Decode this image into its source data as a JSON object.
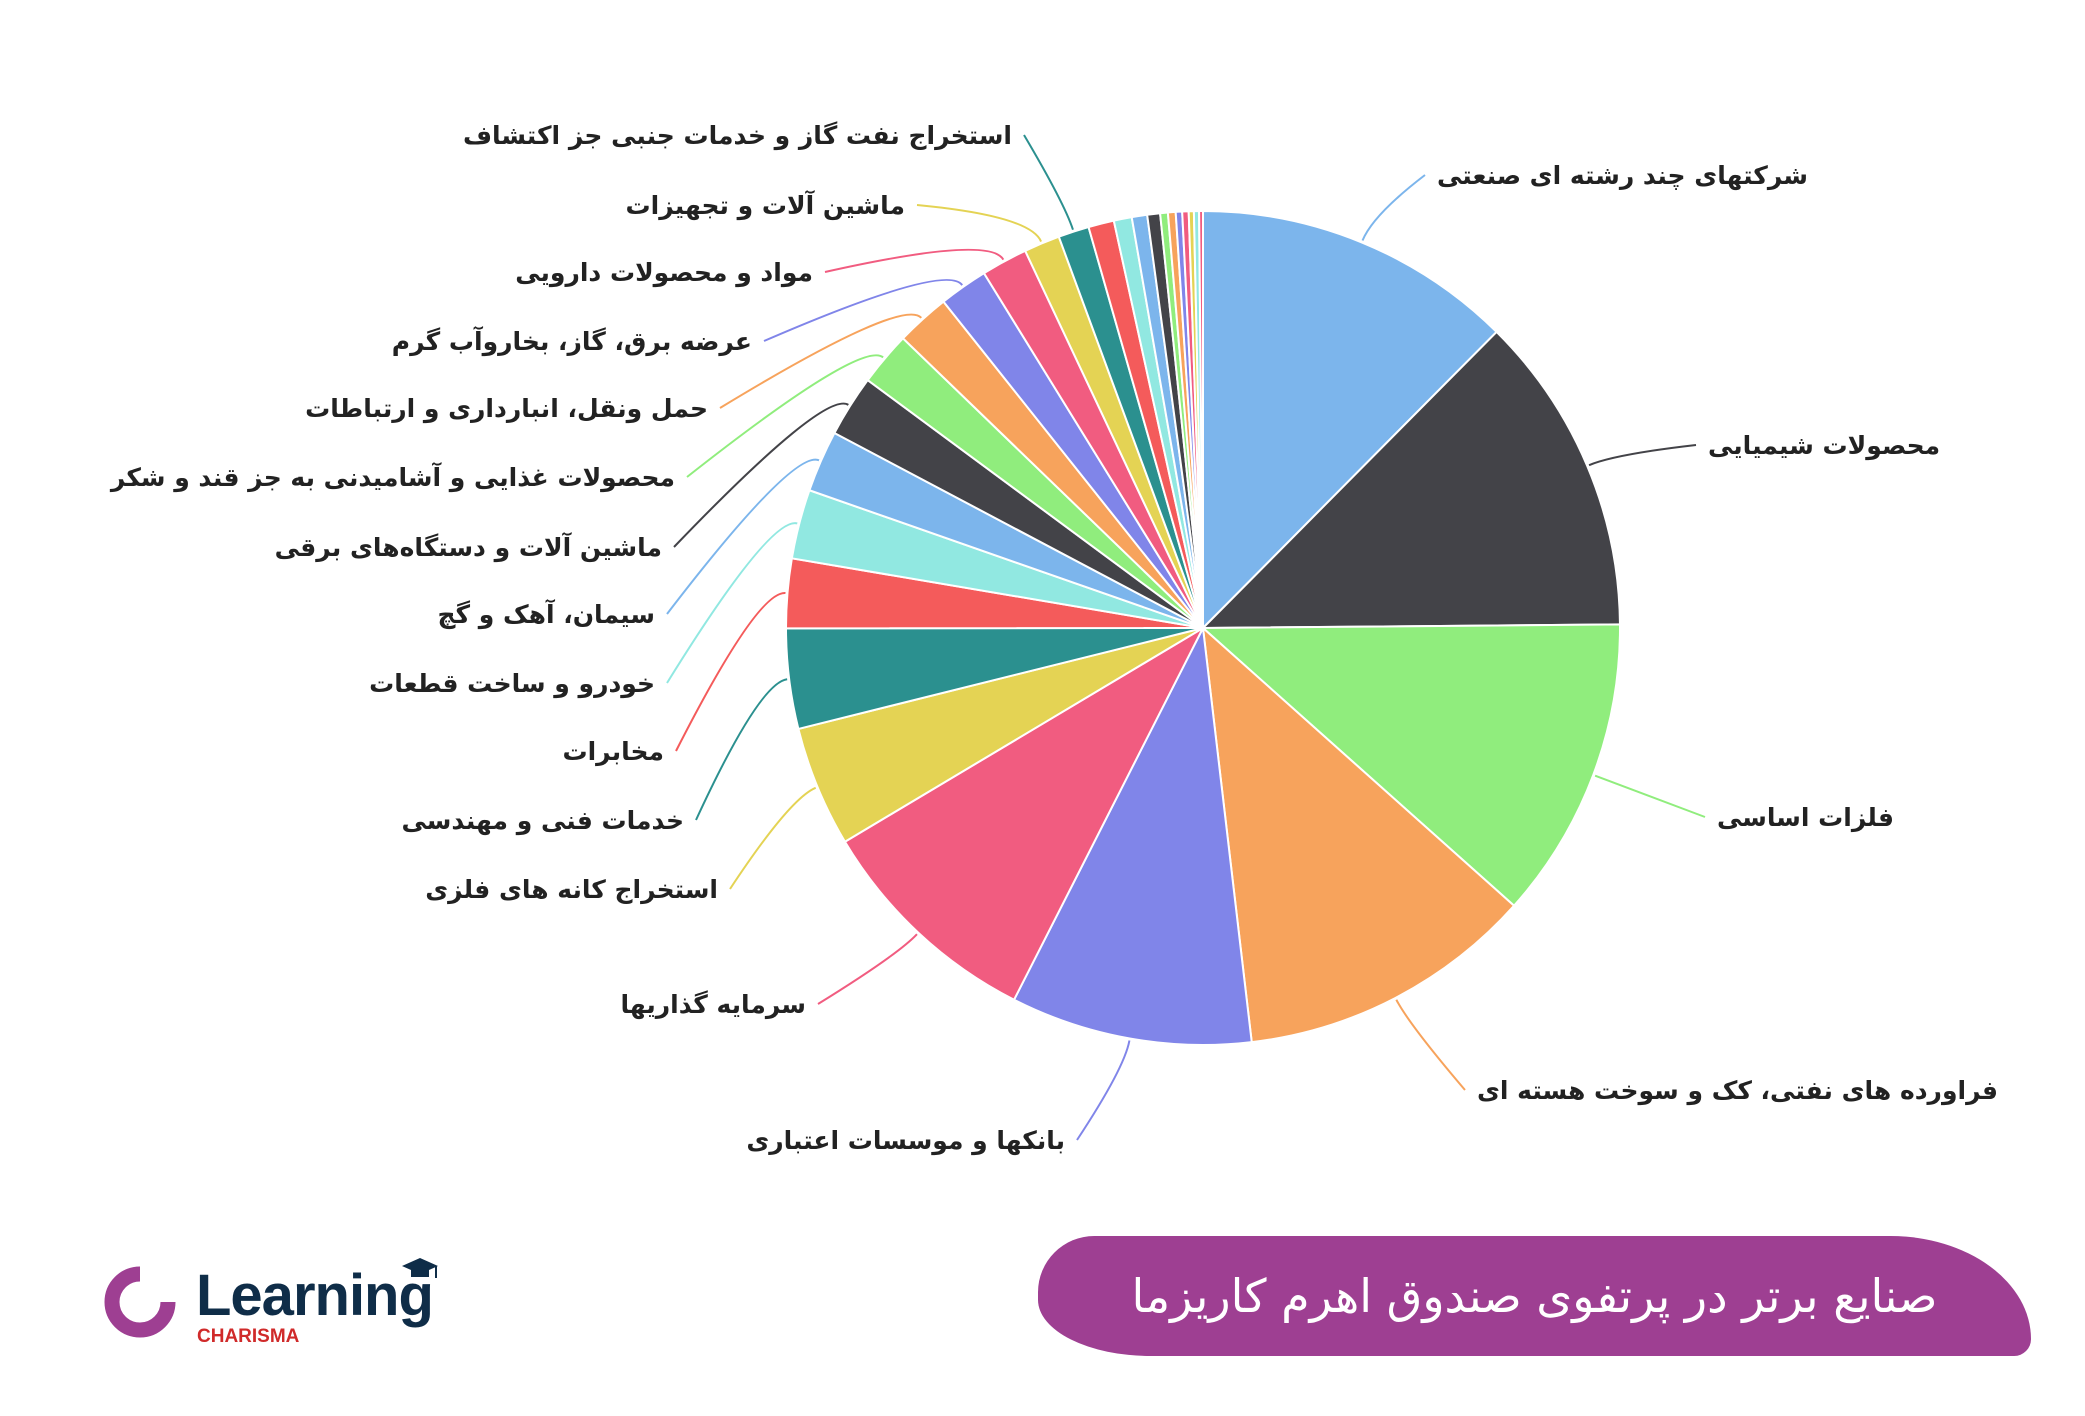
{
  "chart_data": {
    "type": "pie",
    "title": "صنایع برتر در پرتفوی صندوق اهرم کاریزما",
    "start": "top, clockwise",
    "slices": [
      {
        "label": "شرکتهای چند رشته ای صنعتی",
        "value": 12.5,
        "color": "#7cb5ec"
      },
      {
        "label": "محصولات شیمیایی",
        "value": 12.5,
        "color": "#434348"
      },
      {
        "label": "فلزات اساسی",
        "value": 11.8,
        "color": "#90ed7d"
      },
      {
        "label": "فراورده های نفتی، کک و سوخت هسته ای",
        "value": 11.6,
        "color": "#f7a35c"
      },
      {
        "label": "بانکها و موسسات اعتباری",
        "value": 9.4,
        "color": "#8085e9"
      },
      {
        "label": "سرمایه گذاریها",
        "value": 9.0,
        "color": "#f15c80"
      },
      {
        "label": "استخراج کانه های فلزی",
        "value": 4.7,
        "color": "#e4d354"
      },
      {
        "label": "خدمات فنی و مهندسی",
        "value": 3.9,
        "color": "#2b908f"
      },
      {
        "label": "مخابرات",
        "value": 2.7,
        "color": "#f45b5b"
      },
      {
        "label": "خودرو و ساخت قطعات",
        "value": 2.7,
        "color": "#91e8e1"
      },
      {
        "label": "سیمان، آهک و گچ",
        "value": 2.4,
        "color": "#7cb5ec"
      },
      {
        "label": "ماشین آلات و دستگاه‌های برقی",
        "value": 2.4,
        "color": "#434348"
      },
      {
        "label": "محصولات غذایی و آشامیدنی به جز قند و شکر",
        "value": 2.1,
        "color": "#90ed7d"
      },
      {
        "label": "حمل ونقل، انبارداری و ارتباطات",
        "value": 2.1,
        "color": "#f7a35c"
      },
      {
        "label": "عرضه برق، گاز، بخاروآب گرم",
        "value": 1.9,
        "color": "#8085e9"
      },
      {
        "label": "مواد و محصولات دارویی",
        "value": 1.8,
        "color": "#f15c80"
      },
      {
        "label": "ماشین آلات و تجهیزات",
        "value": 1.4,
        "color": "#e4d354"
      },
      {
        "label": "استخراج نفت گاز و خدمات جنبی جز اکتشاف",
        "value": 1.2,
        "color": "#2b908f"
      },
      {
        "label": "",
        "value": 1.0,
        "color": "#f45b5b"
      },
      {
        "label": "",
        "value": 0.7,
        "color": "#91e8e1"
      },
      {
        "label": "",
        "value": 0.6,
        "color": "#7cb5ec"
      },
      {
        "label": "",
        "value": 0.5,
        "color": "#434348"
      },
      {
        "label": "",
        "value": 0.3,
        "color": "#90ed7d"
      },
      {
        "label": "",
        "value": 0.3,
        "color": "#f7a35c"
      },
      {
        "label": "",
        "value": 0.25,
        "color": "#8085e9"
      },
      {
        "label": "",
        "value": 0.25,
        "color": "#f15c80"
      },
      {
        "label": "",
        "value": 0.2,
        "color": "#e4d354"
      },
      {
        "label": "",
        "value": 0.2,
        "color": "#91e8e1"
      },
      {
        "label": "",
        "value": 0.15,
        "color": "#f15c80"
      }
    ]
  },
  "banner": {
    "title": "صنایع برتر در پرتفوی صندوق اهرم کاریزما",
    "color": "#9e3f92"
  },
  "logo": {
    "word": "Learning",
    "sub": "CHARISMA"
  }
}
